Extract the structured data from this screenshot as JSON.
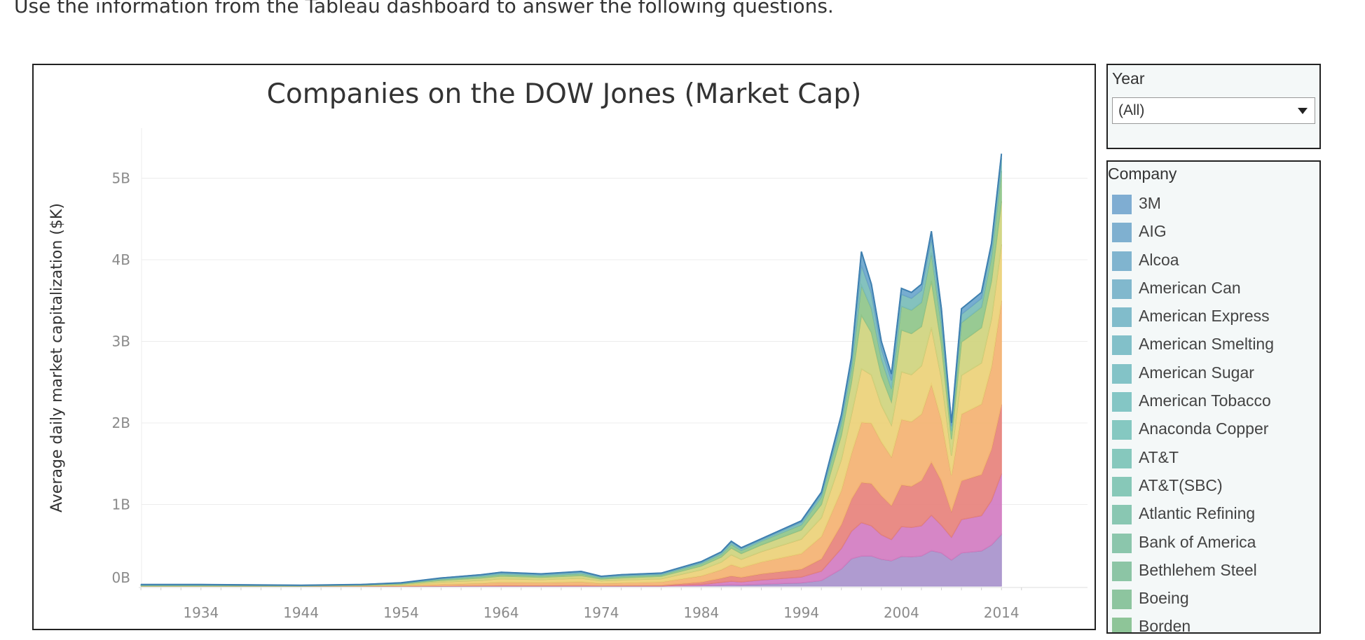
{
  "instruction": "Use the information from the Tableau dashboard to answer the following questions.",
  "filters": {
    "year": {
      "title": "Year",
      "selected": "(All)"
    },
    "company": {
      "title": "Company",
      "items": [
        {
          "label": "3M",
          "color": "#7fadd2"
        },
        {
          "label": "AIG",
          "color": "#7fb0d0"
        },
        {
          "label": "Alcoa",
          "color": "#80b4cf"
        },
        {
          "label": "American Can",
          "color": "#81b8cd"
        },
        {
          "label": "American Express",
          "color": "#81bccb"
        },
        {
          "label": "American Smelting",
          "color": "#82c0c9"
        },
        {
          "label": "American Sugar",
          "color": "#83c3c7"
        },
        {
          "label": "American Tobacco",
          "color": "#84c6c5"
        },
        {
          "label": "Anaconda Copper",
          "color": "#85c8c1"
        },
        {
          "label": "AT&T",
          "color": "#86c8bd"
        },
        {
          "label": "AT&T(SBC)",
          "color": "#87c8b8"
        },
        {
          "label": "Atlantic Refining",
          "color": "#89c7b2"
        },
        {
          "label": "Bank of America",
          "color": "#8bc6ac"
        },
        {
          "label": "Bethlehem Steel",
          "color": "#8cc5a5"
        },
        {
          "label": "Boeing",
          "color": "#8dc59f"
        },
        {
          "label": "Borden",
          "color": "#8ec598"
        }
      ]
    }
  },
  "chart_data": {
    "type": "area",
    "title": "Companies on the DOW Jones (Market Cap)",
    "ylabel": "Average daily market capitalization ($K)",
    "xlabel": "",
    "x_ticks": [
      "1934",
      "1944",
      "1954",
      "1964",
      "1974",
      "1984",
      "1994",
      "2004",
      "2014"
    ],
    "y_ticks": [
      "0B",
      "1B",
      "2B",
      "3B",
      "4B",
      "5B"
    ],
    "ylim": [
      0,
      5.5
    ],
    "xlim": [
      1924,
      2018
    ],
    "grid": true,
    "unit": "billions",
    "x": [
      1928,
      1934,
      1944,
      1950,
      1954,
      1958,
      1962,
      1964,
      1968,
      1972,
      1974,
      1976,
      1980,
      1984,
      1986,
      1987,
      1988,
      1990,
      1994,
      1996,
      1998,
      1999,
      2000,
      2001,
      2002,
      2003,
      2004,
      2005,
      2006,
      2007,
      2008,
      2009,
      2010,
      2011,
      2012,
      2013,
      2014
    ],
    "total": [
      0.02,
      0.02,
      0.01,
      0.02,
      0.04,
      0.1,
      0.14,
      0.17,
      0.15,
      0.18,
      0.12,
      0.14,
      0.16,
      0.3,
      0.42,
      0.55,
      0.47,
      0.58,
      0.8,
      1.15,
      2.1,
      2.8,
      4.1,
      3.7,
      3.0,
      2.6,
      3.65,
      3.6,
      3.7,
      4.35,
      3.4,
      2.0,
      3.4,
      3.5,
      3.6,
      4.2,
      5.3
    ],
    "series_bands": [
      {
        "name": "purple",
        "color": "#a893cc",
        "share": [
          0.0,
          0.0,
          0.0,
          0.0,
          0.0,
          0.0,
          0.0,
          0.0,
          0.0,
          0.0,
          0.0,
          0.0,
          0.0,
          0.02,
          0.03,
          0.03,
          0.03,
          0.04,
          0.05,
          0.06,
          0.1,
          0.12,
          0.09,
          0.1,
          0.11,
          0.12,
          0.1,
          0.1,
          0.1,
          0.1,
          0.12,
          0.16,
          0.12,
          0.12,
          0.12,
          0.12,
          0.12
        ]
      },
      {
        "name": "magenta",
        "color": "#d37cc1",
        "share": [
          0.0,
          0.0,
          0.0,
          0.0,
          0.0,
          0.02,
          0.02,
          0.02,
          0.02,
          0.02,
          0.02,
          0.02,
          0.02,
          0.05,
          0.08,
          0.08,
          0.08,
          0.09,
          0.09,
          0.1,
          0.12,
          0.12,
          0.1,
          0.1,
          0.1,
          0.1,
          0.1,
          0.1,
          0.1,
          0.1,
          0.1,
          0.14,
          0.12,
          0.12,
          0.12,
          0.13,
          0.14
        ]
      },
      {
        "name": "red",
        "color": "#e7827c",
        "share": [
          0.0,
          0.0,
          0.0,
          0.0,
          0.02,
          0.03,
          0.04,
          0.05,
          0.05,
          0.05,
          0.05,
          0.05,
          0.05,
          0.1,
          0.12,
          0.12,
          0.12,
          0.13,
          0.12,
          0.13,
          0.14,
          0.14,
          0.12,
          0.14,
          0.16,
          0.16,
          0.14,
          0.14,
          0.15,
          0.15,
          0.16,
          0.16,
          0.14,
          0.14,
          0.14,
          0.15,
          0.16
        ]
      },
      {
        "name": "orange",
        "color": "#f4b272",
        "share": [
          0.0,
          0.0,
          0.0,
          0.1,
          0.15,
          0.2,
          0.2,
          0.22,
          0.22,
          0.22,
          0.22,
          0.22,
          0.25,
          0.25,
          0.25,
          0.25,
          0.25,
          0.25,
          0.24,
          0.24,
          0.2,
          0.2,
          0.18,
          0.2,
          0.22,
          0.23,
          0.22,
          0.22,
          0.22,
          0.22,
          0.22,
          0.22,
          0.24,
          0.24,
          0.24,
          0.24,
          0.24
        ]
      },
      {
        "name": "yellow",
        "color": "#ecd178",
        "share": [
          0.0,
          0.0,
          0.0,
          0.2,
          0.2,
          0.25,
          0.25,
          0.25,
          0.25,
          0.25,
          0.25,
          0.25,
          0.25,
          0.25,
          0.22,
          0.22,
          0.22,
          0.22,
          0.22,
          0.2,
          0.18,
          0.17,
          0.16,
          0.16,
          0.15,
          0.15,
          0.16,
          0.16,
          0.16,
          0.16,
          0.15,
          0.12,
          0.14,
          0.14,
          0.14,
          0.14,
          0.13
        ]
      },
      {
        "name": "olive",
        "color": "#cfd47e",
        "share": [
          0.2,
          0.2,
          0.2,
          0.25,
          0.25,
          0.2,
          0.2,
          0.18,
          0.18,
          0.18,
          0.18,
          0.18,
          0.18,
          0.15,
          0.15,
          0.15,
          0.15,
          0.14,
          0.14,
          0.14,
          0.14,
          0.14,
          0.16,
          0.14,
          0.12,
          0.11,
          0.14,
          0.14,
          0.13,
          0.13,
          0.12,
          0.1,
          0.12,
          0.12,
          0.12,
          0.11,
          0.1
        ]
      },
      {
        "name": "green",
        "color": "#8fc68a",
        "share": [
          0.3,
          0.3,
          0.3,
          0.2,
          0.18,
          0.15,
          0.14,
          0.13,
          0.13,
          0.13,
          0.13,
          0.13,
          0.12,
          0.1,
          0.08,
          0.08,
          0.08,
          0.08,
          0.08,
          0.08,
          0.07,
          0.06,
          0.09,
          0.08,
          0.07,
          0.06,
          0.08,
          0.08,
          0.08,
          0.08,
          0.07,
          0.05,
          0.07,
          0.07,
          0.07,
          0.07,
          0.07
        ]
      },
      {
        "name": "teal",
        "color": "#79bdb8",
        "share": [
          0.3,
          0.3,
          0.3,
          0.15,
          0.12,
          0.1,
          0.1,
          0.1,
          0.1,
          0.1,
          0.1,
          0.1,
          0.08,
          0.05,
          0.05,
          0.05,
          0.05,
          0.03,
          0.04,
          0.03,
          0.03,
          0.03,
          0.06,
          0.05,
          0.04,
          0.04,
          0.04,
          0.04,
          0.04,
          0.04,
          0.04,
          0.03,
          0.03,
          0.03,
          0.03,
          0.03,
          0.03
        ]
      },
      {
        "name": "blue",
        "color": "#6ba6cc",
        "share": [
          0.2,
          0.2,
          0.2,
          0.1,
          0.08,
          0.05,
          0.05,
          0.05,
          0.05,
          0.05,
          0.05,
          0.05,
          0.05,
          0.03,
          0.02,
          0.02,
          0.02,
          0.02,
          0.02,
          0.02,
          0.02,
          0.02,
          0.04,
          0.03,
          0.03,
          0.03,
          0.02,
          0.02,
          0.02,
          0.02,
          0.02,
          0.02,
          0.02,
          0.02,
          0.02,
          0.01,
          0.01
        ]
      }
    ]
  }
}
